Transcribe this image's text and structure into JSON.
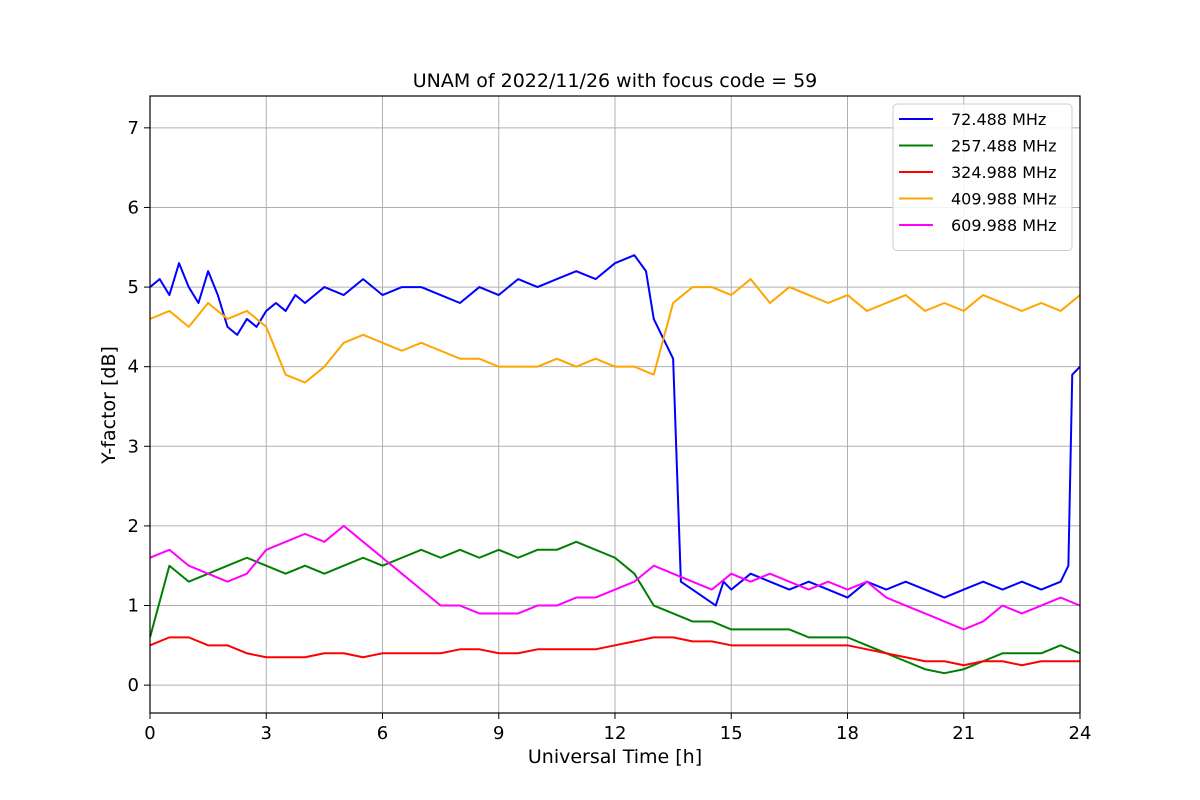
{
  "chart_data": {
    "type": "line",
    "title": "UNAM of 2022/11/26 with focus code = 59",
    "xlabel": "Universal Time [h]",
    "ylabel": "Y-factor [dB]",
    "xlim": [
      0,
      24
    ],
    "ylim": [
      -0.35,
      7.4
    ],
    "xticks": [
      0,
      3,
      6,
      9,
      12,
      15,
      18,
      21,
      24
    ],
    "yticks": [
      0,
      1,
      2,
      3,
      4,
      5,
      6,
      7
    ],
    "grid": true,
    "legend_position": "top-right",
    "series": [
      {
        "name": "  72.488 MHz",
        "color": "#0000ff",
        "x": [
          0,
          0.25,
          0.5,
          0.75,
          1,
          1.25,
          1.5,
          1.75,
          2,
          2.25,
          2.5,
          2.75,
          3,
          3.25,
          3.5,
          3.75,
          4,
          4.5,
          5,
          5.5,
          6,
          6.5,
          7,
          7.5,
          8,
          8.5,
          9,
          9.5,
          10,
          10.5,
          11,
          11.5,
          12,
          12.5,
          12.8,
          13,
          13.3,
          13.5,
          13.7,
          14,
          14.3,
          14.6,
          14.8,
          15,
          15.5,
          16,
          16.5,
          17,
          17.5,
          18,
          18.5,
          19,
          19.5,
          20,
          20.5,
          21,
          21.5,
          22,
          22.5,
          23,
          23.5,
          23.7,
          23.8,
          24
        ],
        "y": [
          5.0,
          5.1,
          4.9,
          5.3,
          5.0,
          4.8,
          5.2,
          4.9,
          4.5,
          4.4,
          4.6,
          4.5,
          4.7,
          4.8,
          4.7,
          4.9,
          4.8,
          5.0,
          4.9,
          5.1,
          4.9,
          5.0,
          5.0,
          4.9,
          4.8,
          5.0,
          4.9,
          5.1,
          5.0,
          5.1,
          5.2,
          5.1,
          5.3,
          5.4,
          5.2,
          4.6,
          4.3,
          4.1,
          1.3,
          1.2,
          1.1,
          1.0,
          1.3,
          1.2,
          1.4,
          1.3,
          1.2,
          1.3,
          1.2,
          1.1,
          1.3,
          1.2,
          1.3,
          1.2,
          1.1,
          1.2,
          1.3,
          1.2,
          1.3,
          1.2,
          1.3,
          1.5,
          3.9,
          4.0
        ]
      },
      {
        "name": "257.488 MHz",
        "color": "#008000",
        "x": [
          0,
          0.5,
          1,
          1.5,
          2,
          2.5,
          3,
          3.5,
          4,
          4.5,
          5,
          5.5,
          6,
          6.5,
          7,
          7.5,
          8,
          8.5,
          9,
          9.5,
          10,
          10.5,
          11,
          11.5,
          12,
          12.5,
          13,
          13.5,
          14,
          14.5,
          15,
          15.5,
          16,
          16.5,
          17,
          17.5,
          18,
          18.5,
          19,
          19.5,
          20,
          20.5,
          21,
          21.5,
          22,
          22.5,
          23,
          23.5,
          24
        ],
        "y": [
          0.6,
          1.5,
          1.3,
          1.4,
          1.5,
          1.6,
          1.5,
          1.4,
          1.5,
          1.4,
          1.5,
          1.6,
          1.5,
          1.6,
          1.7,
          1.6,
          1.7,
          1.6,
          1.7,
          1.6,
          1.7,
          1.7,
          1.8,
          1.7,
          1.6,
          1.4,
          1.0,
          0.9,
          0.8,
          0.8,
          0.7,
          0.7,
          0.7,
          0.7,
          0.6,
          0.6,
          0.6,
          0.5,
          0.4,
          0.3,
          0.2,
          0.15,
          0.2,
          0.3,
          0.4,
          0.4,
          0.4,
          0.5,
          0.4
        ]
      },
      {
        "name": "324.988 MHz",
        "color": "#ff0000",
        "x": [
          0,
          0.5,
          1,
          1.5,
          2,
          2.5,
          3,
          3.5,
          4,
          4.5,
          5,
          5.5,
          6,
          6.5,
          7,
          7.5,
          8,
          8.5,
          9,
          9.5,
          10,
          10.5,
          11,
          11.5,
          12,
          12.5,
          13,
          13.5,
          14,
          14.5,
          15,
          15.5,
          16,
          16.5,
          17,
          17.5,
          18,
          18.5,
          19,
          19.5,
          20,
          20.5,
          21,
          21.5,
          22,
          22.5,
          23,
          23.5,
          24
        ],
        "y": [
          0.5,
          0.6,
          0.6,
          0.5,
          0.5,
          0.4,
          0.35,
          0.35,
          0.35,
          0.4,
          0.4,
          0.35,
          0.4,
          0.4,
          0.4,
          0.4,
          0.45,
          0.45,
          0.4,
          0.4,
          0.45,
          0.45,
          0.45,
          0.45,
          0.5,
          0.55,
          0.6,
          0.6,
          0.55,
          0.55,
          0.5,
          0.5,
          0.5,
          0.5,
          0.5,
          0.5,
          0.5,
          0.45,
          0.4,
          0.35,
          0.3,
          0.3,
          0.25,
          0.3,
          0.3,
          0.25,
          0.3,
          0.3,
          0.3
        ]
      },
      {
        "name": "409.988 MHz",
        "color": "#ffa500",
        "x": [
          0,
          0.5,
          1,
          1.5,
          2,
          2.5,
          3,
          3.5,
          4,
          4.5,
          5,
          5.5,
          6,
          6.5,
          7,
          7.5,
          8,
          8.5,
          9,
          9.5,
          10,
          10.5,
          11,
          11.5,
          12,
          12.5,
          13,
          13.5,
          14,
          14.5,
          15,
          15.5,
          16,
          16.5,
          17,
          17.5,
          18,
          18.5,
          19,
          19.5,
          20,
          20.5,
          21,
          21.5,
          22,
          22.5,
          23,
          23.5,
          24
        ],
        "y": [
          4.6,
          4.7,
          4.5,
          4.8,
          4.6,
          4.7,
          4.5,
          3.9,
          3.8,
          4.0,
          4.3,
          4.4,
          4.3,
          4.2,
          4.3,
          4.2,
          4.1,
          4.1,
          4.0,
          4.0,
          4.0,
          4.1,
          4.0,
          4.1,
          4.0,
          4.0,
          3.9,
          4.8,
          5.0,
          5.0,
          4.9,
          5.1,
          4.8,
          5.0,
          4.9,
          4.8,
          4.9,
          4.7,
          4.8,
          4.9,
          4.7,
          4.8,
          4.7,
          4.9,
          4.8,
          4.7,
          4.8,
          4.7,
          4.9
        ]
      },
      {
        "name": "609.988 MHz",
        "color": "#ff00ff",
        "x": [
          0,
          0.5,
          1,
          1.5,
          2,
          2.5,
          3,
          3.5,
          4,
          4.5,
          5,
          5.5,
          6,
          6.5,
          7,
          7.5,
          8,
          8.5,
          9,
          9.5,
          10,
          10.5,
          11,
          11.5,
          12,
          12.5,
          13,
          13.5,
          14,
          14.5,
          15,
          15.5,
          16,
          16.5,
          17,
          17.5,
          18,
          18.5,
          19,
          19.5,
          20,
          20.5,
          21,
          21.5,
          22,
          22.5,
          23,
          23.5,
          24
        ],
        "y": [
          1.6,
          1.7,
          1.5,
          1.4,
          1.3,
          1.4,
          1.7,
          1.8,
          1.9,
          1.8,
          2.0,
          1.8,
          1.6,
          1.4,
          1.2,
          1.0,
          1.0,
          0.9,
          0.9,
          0.9,
          1.0,
          1.0,
          1.1,
          1.1,
          1.2,
          1.3,
          1.5,
          1.4,
          1.3,
          1.2,
          1.4,
          1.3,
          1.4,
          1.3,
          1.2,
          1.3,
          1.2,
          1.3,
          1.1,
          1.0,
          0.9,
          0.8,
          0.7,
          0.8,
          1.0,
          0.9,
          1.0,
          1.1,
          1.0
        ]
      }
    ]
  }
}
